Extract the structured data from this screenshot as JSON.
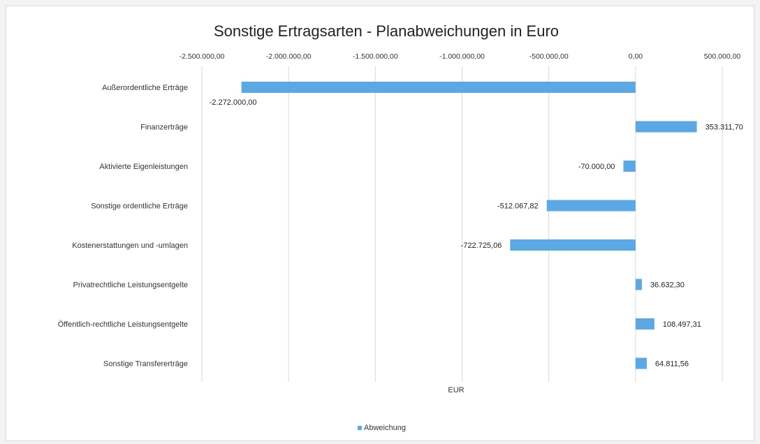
{
  "chart_data": {
    "type": "bar",
    "orientation": "horizontal",
    "title": "Sonstige Ertragsarten - Planabweichungen in Euro",
    "xlabel": "EUR",
    "xlim": [
      -2500000,
      500000
    ],
    "x_ticks": [
      -2500000,
      -2000000,
      -1500000,
      -1000000,
      -500000,
      0,
      500000
    ],
    "x_tick_labels": [
      "-2.500.000,00",
      "-2.000.000,00",
      "-1.500.000,00",
      "-1.000.000,00",
      "-500.000,00",
      "0,00",
      "500.000,00"
    ],
    "x_axis_position": "top",
    "grid": true,
    "legend_position": "bottom",
    "bar_color": "#5aa9e6",
    "categories": [
      "Außerordentliche Erträge",
      "Finanzerträge",
      "Aktivierte Eigenleistungen",
      "Sonstige ordentliche Erträge",
      "Kostenerstattungen und -umlagen",
      "Privatrechtliche Leistungsentgelte",
      "Öffentlich-rechtliche Leistungsentgelte",
      "Sonstige Transfererträge"
    ],
    "series": [
      {
        "name": "Abweichung",
        "values": [
          -2272000.0,
          353311.7,
          -70000.0,
          -512067.82,
          -722725.06,
          36632.3,
          108497.31,
          64811.56
        ],
        "labels": [
          "-2.272.000,00",
          "353.311,70",
          "-70.000,00",
          "-512.067,82",
          "-722.725,06",
          "36.632,30",
          "108.497,31",
          "64.811,56"
        ]
      }
    ]
  }
}
